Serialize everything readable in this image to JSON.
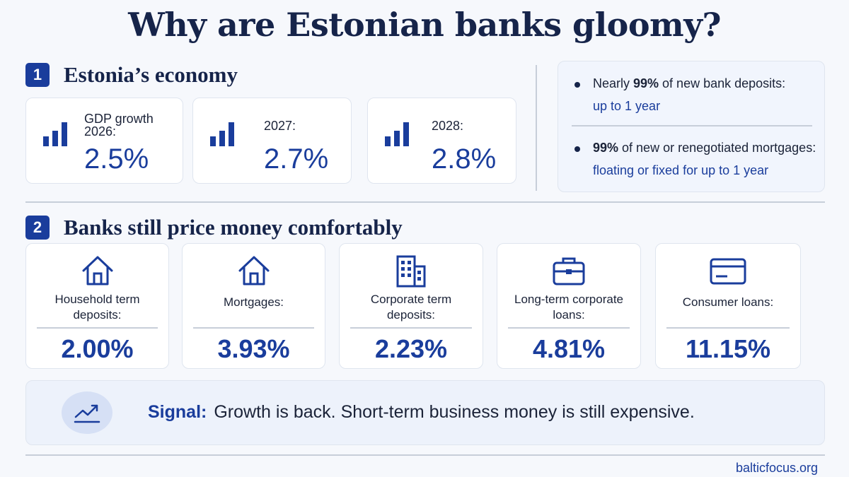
{
  "title": "Why are Estonian banks gloomy?",
  "section1": {
    "number": "1",
    "title": "Estonia’s economy",
    "cards": [
      {
        "label": "GDP growth 2026:",
        "value": "2.5%",
        "icon": "bar-chart-icon"
      },
      {
        "label": "2027:",
        "value": "2.7%",
        "icon": "bar-chart-icon"
      },
      {
        "label": "2028:",
        "value": "2.8%",
        "icon": "bar-chart-icon"
      }
    ],
    "info": [
      {
        "prefix": "Nearly ",
        "bold": "99%",
        "suffix": " of new bank deposits:",
        "accent": "up to 1 year"
      },
      {
        "prefix": "",
        "bold": "99%",
        "suffix": " of new or renegotiated mortgages:",
        "accent": "floating or fixed for up to 1 year"
      }
    ]
  },
  "section2": {
    "number": "2",
    "title": "Banks still price money comfortably",
    "rates": [
      {
        "label": "Household term deposits:",
        "value": "2.00%",
        "icon": "house-icon"
      },
      {
        "label": "Mortgages:",
        "value": "3.93%",
        "icon": "home-icon"
      },
      {
        "label": "Corporate term deposits:",
        "value": "2.23%",
        "icon": "building-icon"
      },
      {
        "label": "Long-term corporate loans:",
        "value": "4.81%",
        "icon": "briefcase-icon"
      },
      {
        "label": "Consumer loans:",
        "value": "11.15%",
        "icon": "credit-card-icon"
      }
    ]
  },
  "signal": {
    "label": "Signal:",
    "text": "Growth is back. Short-term business money is still expensive.",
    "icon": "trend-up-icon"
  },
  "footer": "balticfocus.org",
  "colors": {
    "accent": "#1a3d9c",
    "heading": "#16244a",
    "background": "#f6f8fc"
  }
}
